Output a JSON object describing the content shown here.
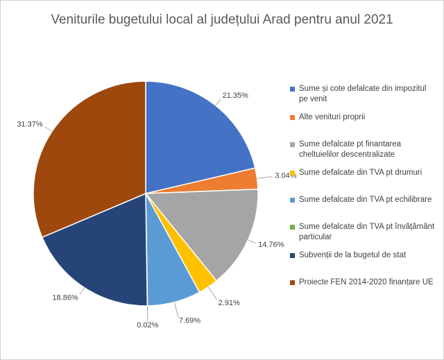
{
  "chart_data": {
    "type": "pie",
    "title": "Veniturile bugetului local al județului Arad pentru anul 2021",
    "categories": [
      "Sume și cote defalcate din impozitul pe venit",
      "Alte venituri proprii",
      "Sume defalcate pt finantarea cheltuielilor descentralizate",
      "Sume defalcate din TVA pt drumuri",
      "Sume defalcate din TVA pt echilibrare",
      "Sume defalcate din TVA pt învățământ particular",
      "Subvenții de la bugetul de stat",
      "Proiecte FEN 2014-2020 finanțare UE"
    ],
    "values": [
      21.35,
      3.04,
      14.76,
      2.91,
      7.69,
      0.02,
      18.86,
      31.37
    ],
    "value_labels": [
      "21.35%",
      "3.04%",
      "14.76%",
      "2.91%",
      "7.69%",
      "0.02%",
      "18.86%",
      "31.37%"
    ],
    "colors": [
      "#4472c4",
      "#ed7d31",
      "#a5a5a5",
      "#ffc000",
      "#5b9bd5",
      "#70ad47",
      "#264478",
      "#9e480e"
    ],
    "legend": "right"
  }
}
